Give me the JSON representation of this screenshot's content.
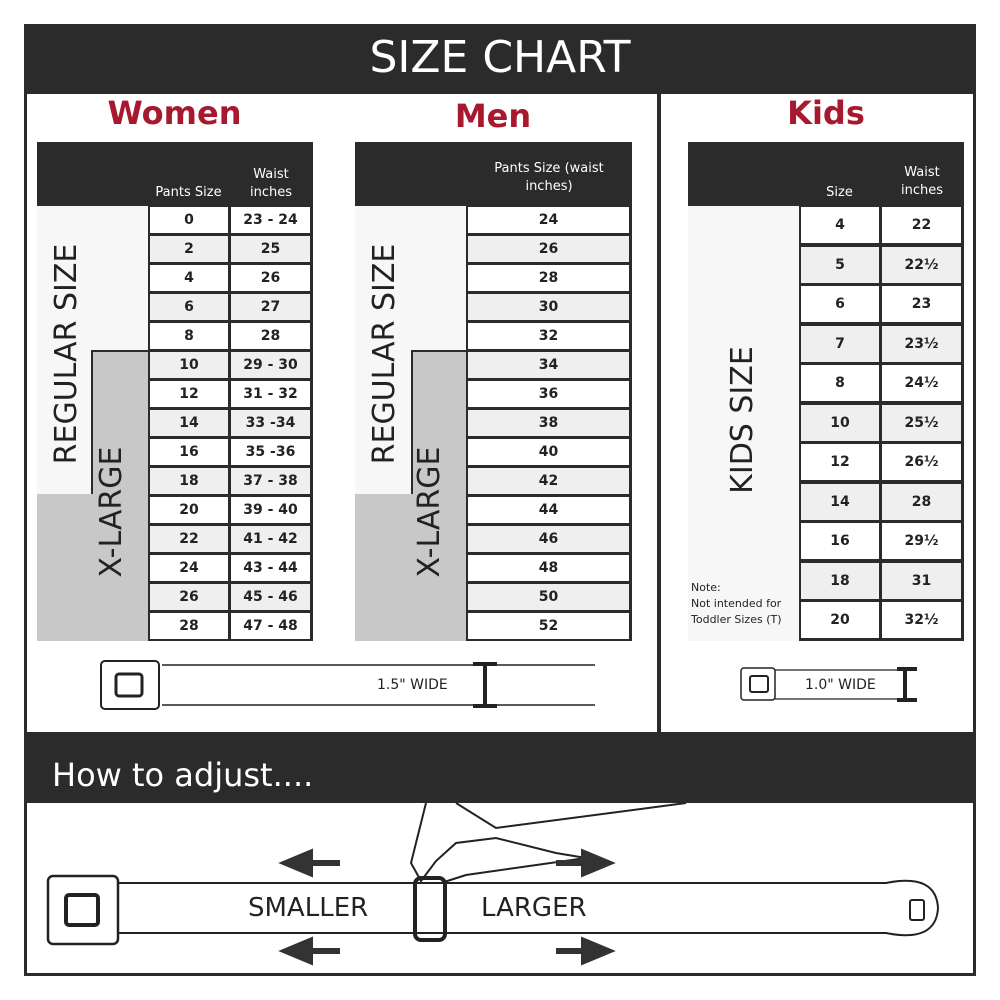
{
  "title": "SIZE CHART",
  "women": {
    "heading": "Women",
    "col1": "Pants Size",
    "col2": "Waist inches",
    "regular_label": "REGULAR SIZE",
    "xlarge_label": "X-LARGE",
    "rows": [
      [
        "0",
        "23 - 24"
      ],
      [
        "2",
        "25"
      ],
      [
        "4",
        "26"
      ],
      [
        "6",
        "27"
      ],
      [
        "8",
        "28"
      ],
      [
        "10",
        "29 - 30"
      ],
      [
        "12",
        "31 - 32"
      ],
      [
        "14",
        "33 -34"
      ],
      [
        "16",
        "35 -36"
      ],
      [
        "18",
        "37 - 38"
      ],
      [
        "20",
        "39 - 40"
      ],
      [
        "22",
        "41 - 42"
      ],
      [
        "24",
        "43 - 44"
      ],
      [
        "26",
        "45 - 46"
      ],
      [
        "28",
        "47 - 48"
      ]
    ],
    "belt_width": "1.5\" WIDE"
  },
  "men": {
    "heading": "Men",
    "col1": "Pants Size (waist inches)",
    "regular_label": "REGULAR SIZE",
    "xlarge_label": "X-LARGE",
    "rows": [
      "24",
      "26",
      "28",
      "30",
      "32",
      "34",
      "36",
      "38",
      "40",
      "42",
      "44",
      "46",
      "48",
      "50",
      "52"
    ]
  },
  "kids": {
    "heading": "Kids",
    "col1": "Size",
    "col2": "Waist inches",
    "size_label": "KIDS SIZE",
    "note_title": "Note:",
    "note_text": "Not intended for Toddler Sizes (T)",
    "rows": [
      [
        "4",
        "22"
      ],
      [
        "5",
        "22½"
      ],
      [
        "6",
        "23"
      ],
      [
        "7",
        "23½"
      ],
      [
        "8",
        "24½"
      ],
      [
        "10",
        "25½"
      ],
      [
        "12",
        "26½"
      ],
      [
        "14",
        "28"
      ],
      [
        "16",
        "29½"
      ],
      [
        "18",
        "31"
      ],
      [
        "20",
        "32½"
      ]
    ],
    "belt_width": "1.0\" WIDE"
  },
  "adjust": {
    "heading": "How to adjust....",
    "smaller": "SMALLER",
    "larger": "LARGER"
  },
  "colors": {
    "accent": "#a6192e",
    "dark": "#2b2b2b",
    "xlarge_fill": "#c8c8c8"
  }
}
